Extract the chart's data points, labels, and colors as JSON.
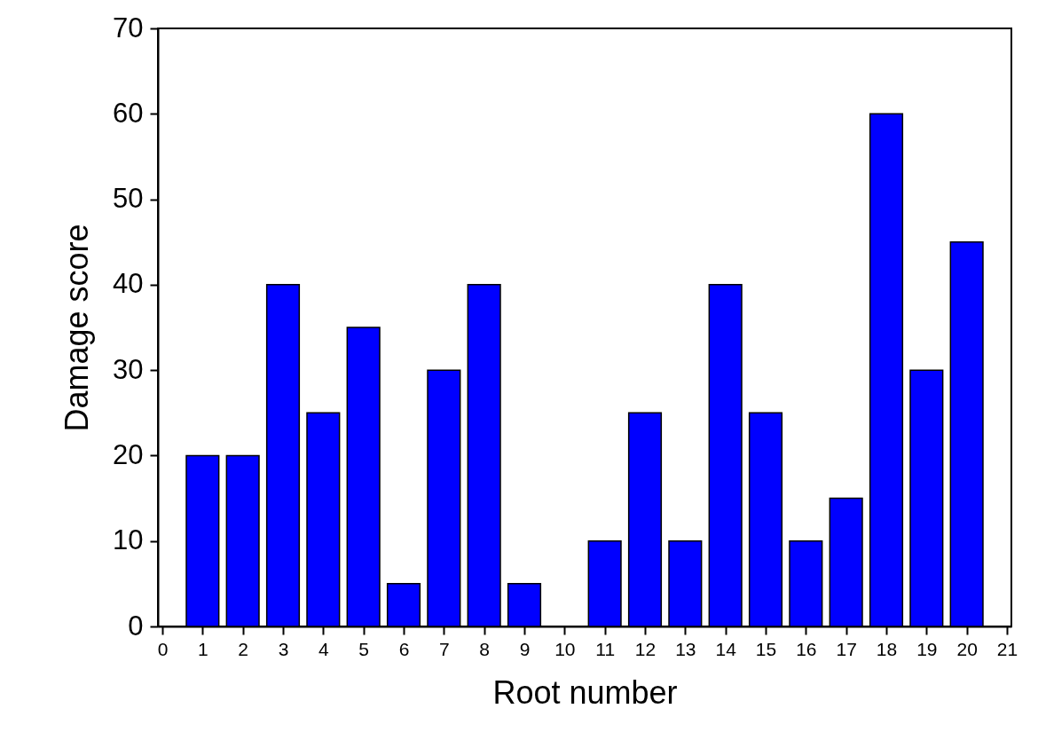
{
  "chart_data": {
    "type": "bar",
    "xlabel": "Root number",
    "ylabel": "Damage score",
    "color": "#0000ff",
    "x": [
      1,
      2,
      3,
      4,
      5,
      6,
      7,
      8,
      9,
      10,
      11,
      12,
      13,
      14,
      15,
      16,
      17,
      18,
      19,
      20
    ],
    "values": [
      20,
      20,
      40,
      25,
      35,
      5,
      30,
      40,
      5,
      0,
      10,
      25,
      10,
      40,
      25,
      10,
      15,
      60,
      30,
      45
    ],
    "xlim": [
      0,
      21
    ],
    "xticks": [
      0,
      1,
      2,
      3,
      4,
      5,
      6,
      7,
      8,
      9,
      10,
      11,
      12,
      13,
      14,
      15,
      16,
      17,
      18,
      19,
      20,
      21
    ],
    "ylim": [
      0,
      70
    ],
    "yticks": [
      0,
      10,
      20,
      30,
      40,
      50,
      60,
      70
    ],
    "grid": false
  }
}
